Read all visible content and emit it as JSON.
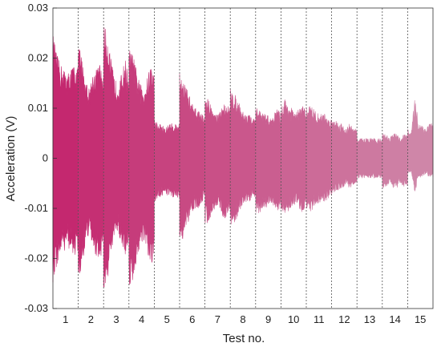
{
  "chart_data": {
    "type": "area",
    "xlabel": "Test no.",
    "ylabel": "Acceleration (V)",
    "ylim": [
      -0.03,
      0.03
    ],
    "yticks": [
      0.03,
      0.02,
      0.01,
      0,
      -0.01,
      -0.02,
      -0.03
    ],
    "ytick_labels": [
      "0.03",
      "0.02",
      "0.01",
      "0",
      "-0.01",
      "-0.02",
      "-0.03"
    ],
    "xtick_labels": [
      "1",
      "2",
      "3",
      "4",
      "5",
      "6",
      "7",
      "8",
      "9",
      "10",
      "11",
      "12",
      "13",
      "14",
      "15"
    ],
    "test_separators": "dotted vertical lines between tests",
    "grid": false,
    "color_start": "#c4286f",
    "color_end": "#cf86a8",
    "series": [
      {
        "tests": [
          {
            "test": 1,
            "envelope": [
              0.025,
              0.021,
              0.019,
              0.018,
              0.017,
              0.018,
              0.019,
              0.018
            ],
            "peak_neg": -0.026
          },
          {
            "test": 2,
            "envelope": [
              0.024,
              0.02,
              0.016,
              0.014,
              0.017,
              0.018,
              0.019,
              0.016
            ],
            "peak_neg": -0.026
          },
          {
            "test": 3,
            "envelope": [
              0.027,
              0.025,
              0.02,
              0.016,
              0.015,
              0.017,
              0.02,
              0.016
            ],
            "peak_neg": -0.027
          },
          {
            "test": 4,
            "envelope": [
              0.022,
              0.021,
              0.018,
              0.015,
              0.014,
              0.016,
              0.019,
              0.017
            ],
            "peak_neg": -0.026
          },
          {
            "test": 5,
            "envelope": [
              0.008,
              0.007,
              0.007,
              0.006,
              0.007,
              0.007,
              0.007,
              0.007
            ],
            "peak_neg": -0.009
          },
          {
            "test": 6,
            "envelope": [
              0.017,
              0.016,
              0.014,
              0.012,
              0.01,
              0.01,
              0.009,
              0.008
            ],
            "peak_neg": -0.017
          },
          {
            "test": 7,
            "envelope": [
              0.012,
              0.012,
              0.01,
              0.009,
              0.009,
              0.011,
              0.011,
              0.01
            ],
            "peak_neg": -0.013
          },
          {
            "test": 8,
            "envelope": [
              0.014,
              0.013,
              0.012,
              0.01,
              0.009,
              0.009,
              0.008,
              0.008
            ],
            "peak_neg": -0.014
          },
          {
            "test": 9,
            "envelope": [
              0.01,
              0.01,
              0.009,
              0.009,
              0.008,
              0.009,
              0.01,
              0.009
            ],
            "peak_neg": -0.011
          },
          {
            "test": 10,
            "envelope": [
              0.01,
              0.012,
              0.011,
              0.01,
              0.009,
              0.01,
              0.011,
              0.009
            ],
            "peak_neg": -0.012
          },
          {
            "test": 11,
            "envelope": [
              0.01,
              0.011,
              0.01,
              0.009,
              0.009,
              0.009,
              0.008,
              0.008
            ],
            "peak_neg": -0.011
          },
          {
            "test": 12,
            "envelope": [
              0.008,
              0.008,
              0.007,
              0.007,
              0.006,
              0.007,
              0.006,
              0.006
            ],
            "peak_neg": -0.007
          },
          {
            "test": 13,
            "envelope": [
              0.004,
              0.004,
              0.004,
              0.004,
              0.004,
              0.004,
              0.004,
              0.004
            ],
            "peak_neg": -0.004
          },
          {
            "test": 14,
            "envelope": [
              0.005,
              0.005,
              0.004,
              0.005,
              0.005,
              0.004,
              0.005,
              0.005
            ],
            "peak_neg": -0.006
          },
          {
            "test": 15,
            "envelope": [
              0.006,
              0.005,
              0.013,
              0.007,
              0.007,
              0.006,
              0.007,
              0.007
            ],
            "peak_neg": -0.007
          }
        ]
      }
    ]
  }
}
